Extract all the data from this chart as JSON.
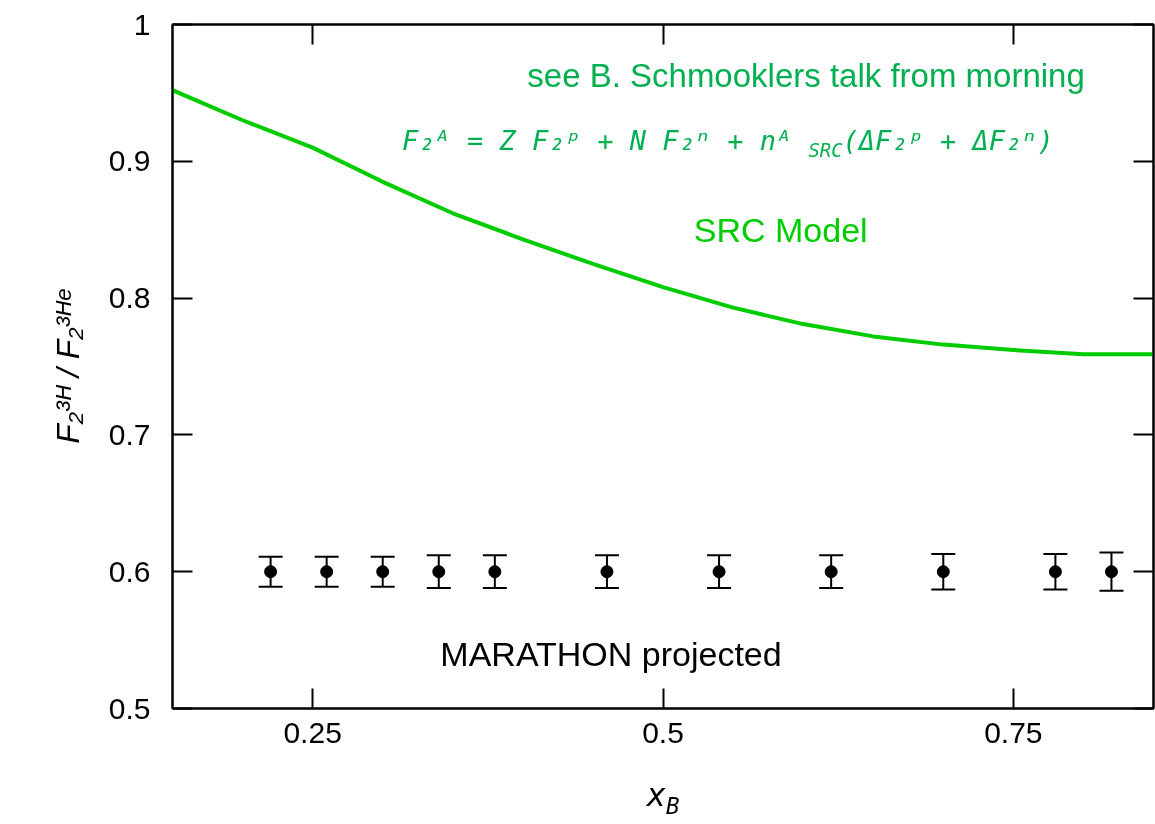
{
  "chart_data": {
    "type": "scatter",
    "xlabel": "x$_{B}$",
    "ylabel": "F₂³ᴴ / F₂³ᴴᵉ",
    "xlim": [
      0.15,
      0.85
    ],
    "ylim": [
      0.5,
      1
    ],
    "xticks": [
      0.25,
      0.5,
      0.75
    ],
    "yticks": [
      0.5,
      0.6,
      0.7,
      0.8,
      0.9,
      1
    ],
    "grid": false,
    "legend": false,
    "marker": "circle",
    "annotations": [
      "see B. Schmooklers talk from morning",
      "F₂ᴬ = Z F₂ᵖ  + N F₂ⁿ + nᴬ$_{SRC}$(ΔF₂ᵖ +  ΔF₂ⁿ)"
    ],
    "series": [
      {
        "name": "SRC Model",
        "type": "line",
        "color": "#00cc00",
        "marker": "none",
        "line_style": "solid",
        "x": [
          0.15,
          0.2,
          0.25,
          0.3,
          0.35,
          0.4,
          0.45,
          0.5,
          0.55,
          0.6,
          0.65,
          0.7,
          0.75,
          0.8,
          0.85
        ],
        "values": [
          0.952,
          0.93,
          0.91,
          0.885,
          0.862,
          0.843,
          0.825,
          0.808,
          0.793,
          0.781,
          0.772,
          0.766,
          0.762,
          0.759,
          0.759
        ]
      },
      {
        "name": "MARATHON projected",
        "type": "scatter",
        "color": "#000000",
        "x": [
          0.22,
          0.26,
          0.3,
          0.34,
          0.38,
          0.46,
          0.54,
          0.62,
          0.7,
          0.78,
          0.82
        ],
        "values": [
          0.6,
          0.6,
          0.6,
          0.6,
          0.6,
          0.6,
          0.6,
          0.6,
          0.6,
          0.6,
          0.6
        ],
        "errors": [
          0.011,
          0.011,
          0.011,
          0.012,
          0.012,
          0.012,
          0.012,
          0.012,
          0.013,
          0.013,
          0.014
        ]
      }
    ]
  }
}
